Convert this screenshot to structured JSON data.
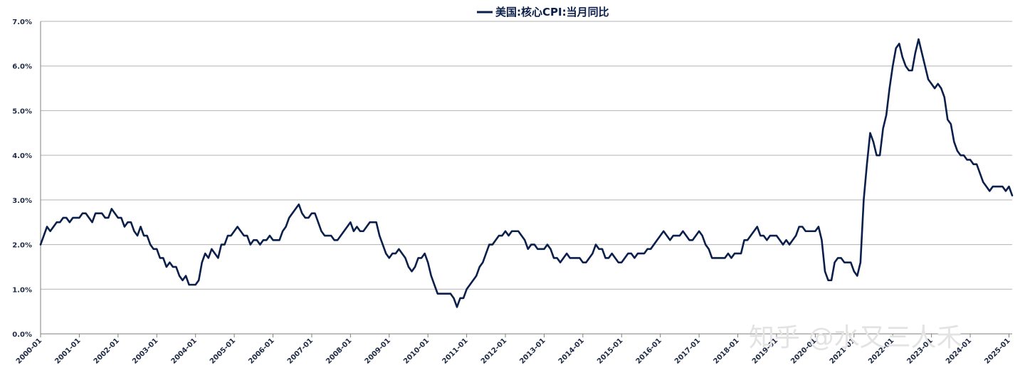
{
  "chart_data": {
    "type": "line",
    "title": "",
    "xlabel": "",
    "ylabel": "",
    "ylim": [
      0,
      7
    ],
    "yticks": [
      "0.0%",
      "1.0%",
      "2.0%",
      "3.0%",
      "4.0%",
      "5.0%",
      "6.0%",
      "7.0%"
    ],
    "xticks": [
      "2000-01",
      "2001-01",
      "2002-01",
      "2003-01",
      "2004-01",
      "2005-01",
      "2006-01",
      "2007-01",
      "2008-01",
      "2009-01",
      "2010-01",
      "2011-01",
      "2012-01",
      "2013-01",
      "2014-01",
      "2015-01",
      "2016-01",
      "2017-01",
      "2018-01",
      "2019-01",
      "2020-01",
      "2021-01",
      "2022-01",
      "2023-01",
      "2024-01",
      "2025-01"
    ],
    "grid": true,
    "legend": "top-center",
    "watermark": "知乎 @水又三人禾",
    "series": [
      {
        "name": "美国:核心CPI:当月同比",
        "color": "#0b1f4b",
        "start": "2000-01",
        "values": [
          2.0,
          2.2,
          2.4,
          2.3,
          2.4,
          2.5,
          2.5,
          2.6,
          2.6,
          2.5,
          2.6,
          2.6,
          2.6,
          2.7,
          2.7,
          2.6,
          2.5,
          2.7,
          2.7,
          2.7,
          2.6,
          2.6,
          2.8,
          2.7,
          2.6,
          2.6,
          2.4,
          2.5,
          2.5,
          2.3,
          2.2,
          2.4,
          2.2,
          2.2,
          2.0,
          1.9,
          1.9,
          1.7,
          1.7,
          1.5,
          1.6,
          1.5,
          1.5,
          1.3,
          1.2,
          1.3,
          1.1,
          1.1,
          1.1,
          1.2,
          1.6,
          1.8,
          1.7,
          1.9,
          1.8,
          1.7,
          2.0,
          2.0,
          2.2,
          2.2,
          2.3,
          2.4,
          2.3,
          2.2,
          2.2,
          2.0,
          2.1,
          2.1,
          2.0,
          2.1,
          2.1,
          2.2,
          2.1,
          2.1,
          2.1,
          2.3,
          2.4,
          2.6,
          2.7,
          2.8,
          2.9,
          2.7,
          2.6,
          2.6,
          2.7,
          2.7,
          2.5,
          2.3,
          2.2,
          2.2,
          2.2,
          2.1,
          2.1,
          2.2,
          2.3,
          2.4,
          2.5,
          2.3,
          2.4,
          2.3,
          2.3,
          2.4,
          2.5,
          2.5,
          2.5,
          2.2,
          2.0,
          1.8,
          1.7,
          1.8,
          1.8,
          1.9,
          1.8,
          1.7,
          1.5,
          1.4,
          1.5,
          1.7,
          1.7,
          1.8,
          1.6,
          1.3,
          1.1,
          0.9,
          0.9,
          0.9,
          0.9,
          0.9,
          0.8,
          0.6,
          0.8,
          0.8,
          1.0,
          1.1,
          1.2,
          1.3,
          1.5,
          1.6,
          1.8,
          2.0,
          2.0,
          2.1,
          2.2,
          2.2,
          2.3,
          2.2,
          2.3,
          2.3,
          2.3,
          2.2,
          2.1,
          1.9,
          2.0,
          2.0,
          1.9,
          1.9,
          1.9,
          2.0,
          1.9,
          1.7,
          1.7,
          1.6,
          1.7,
          1.8,
          1.7,
          1.7,
          1.7,
          1.7,
          1.6,
          1.6,
          1.7,
          1.8,
          2.0,
          1.9,
          1.9,
          1.7,
          1.7,
          1.8,
          1.7,
          1.6,
          1.6,
          1.7,
          1.8,
          1.8,
          1.7,
          1.8,
          1.8,
          1.8,
          1.9,
          1.9,
          2.0,
          2.1,
          2.2,
          2.3,
          2.2,
          2.1,
          2.2,
          2.2,
          2.2,
          2.3,
          2.2,
          2.1,
          2.1,
          2.2,
          2.3,
          2.2,
          2.0,
          1.9,
          1.7,
          1.7,
          1.7,
          1.7,
          1.7,
          1.8,
          1.7,
          1.8,
          1.8,
          1.8,
          2.1,
          2.1,
          2.2,
          2.3,
          2.4,
          2.2,
          2.2,
          2.1,
          2.2,
          2.2,
          2.2,
          2.1,
          2.0,
          2.1,
          2.0,
          2.1,
          2.2,
          2.4,
          2.4,
          2.3,
          2.3,
          2.3,
          2.3,
          2.4,
          2.1,
          1.4,
          1.2,
          1.2,
          1.6,
          1.7,
          1.7,
          1.6,
          1.6,
          1.6,
          1.4,
          1.3,
          1.6,
          3.0,
          3.8,
          4.5,
          4.3,
          4.0,
          4.0,
          4.6,
          4.9,
          5.5,
          6.0,
          6.4,
          6.5,
          6.2,
          6.0,
          5.9,
          5.9,
          6.3,
          6.6,
          6.3,
          6.0,
          5.7,
          5.6,
          5.5,
          5.6,
          5.5,
          5.3,
          4.8,
          4.7,
          4.3,
          4.1,
          4.0,
          4.0,
          3.9,
          3.9,
          3.8,
          3.8,
          3.6,
          3.4,
          3.3,
          3.2,
          3.3,
          3.3,
          3.3,
          3.3,
          3.2,
          3.3,
          3.1
        ]
      }
    ]
  }
}
